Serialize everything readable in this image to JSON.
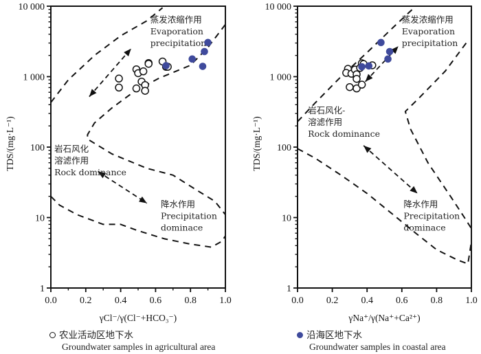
{
  "chart_data": [
    {
      "type": "scatter",
      "title": "",
      "xlabel": "γCl⁻/γ(Cl⁻+HCO₃⁻)",
      "ylabel": "TDS/(mg·L⁻¹)",
      "xlim": [
        0,
        1
      ],
      "ylim": [
        1,
        10000
      ],
      "yscale": "log",
      "x_ticks": [
        "0.0",
        "0.2",
        "0.4",
        "0.6",
        "0.8",
        "1.0"
      ],
      "y_ticks": [
        "1",
        "10",
        "100",
        "1 000",
        "10 000"
      ],
      "annotations": [
        {
          "lines": [
            "蒸发浓缩作用",
            "Evaporation",
            "precipitation"
          ],
          "x": 0.57,
          "y": 5800
        },
        {
          "lines": [
            "岩石风化",
            "溶滤作用",
            "Rock dominance"
          ],
          "x": 0.02,
          "y": 85
        },
        {
          "lines": [
            "降水作用",
            "Precipitation",
            "dominace"
          ],
          "x": 0.63,
          "y": 14
        }
      ],
      "series": [
        {
          "name": "农业活动区地下水 Groundwater samples in agricultural area",
          "marker": "open-circle",
          "points": [
            [
              0.39,
              940
            ],
            [
              0.39,
              700
            ],
            [
              0.49,
              1270
            ],
            [
              0.5,
              1120
            ],
            [
              0.53,
              1190
            ],
            [
              0.52,
              850
            ],
            [
              0.54,
              760
            ],
            [
              0.54,
              630
            ],
            [
              0.49,
              680
            ],
            [
              0.56,
              1560
            ],
            [
              0.56,
              1520
            ],
            [
              0.64,
              1640
            ],
            [
              0.66,
              1380
            ],
            [
              0.67,
              1380
            ]
          ]
        },
        {
          "name": "沿海区地下水 Groundwater samples in coastal area",
          "marker": "filled-circle",
          "color": "#3f4a9c",
          "points": [
            [
              0.66,
              1430
            ],
            [
              0.81,
              1780
            ],
            [
              0.87,
              1400
            ],
            [
              0.88,
              2270
            ],
            [
              0.9,
              3050
            ]
          ]
        }
      ],
      "boundaries": [
        {
          "name": "upper-envelope",
          "points": [
            [
              0.0,
              430
            ],
            [
              0.1,
              900
            ],
            [
              0.25,
              2000
            ],
            [
              0.4,
              3800
            ],
            [
              0.55,
              6200
            ],
            [
              0.64,
              9500
            ]
          ]
        },
        {
          "name": "lower-envelope",
          "points": [
            [
              1.0,
              5500
            ],
            [
              0.9,
              2600
            ],
            [
              0.8,
              1450
            ],
            [
              0.62,
              950
            ],
            [
              0.48,
              620
            ],
            [
              0.35,
              360
            ],
            [
              0.25,
              220
            ],
            [
              0.21,
              150
            ],
            [
              0.21,
              130
            ],
            [
              0.35,
              80
            ],
            [
              0.55,
              50
            ],
            [
              0.7,
              40
            ],
            [
              0.83,
              25
            ],
            [
              0.94,
              17
            ],
            [
              1.0,
              11
            ]
          ]
        },
        {
          "name": "bottom-envelope",
          "points": [
            [
              0.0,
              20
            ],
            [
              0.05,
              15
            ],
            [
              0.15,
              11
            ],
            [
              0.3,
              8
            ],
            [
              0.4,
              8
            ],
            [
              0.5,
              6.5
            ],
            [
              0.65,
              5
            ],
            [
              0.8,
              4.2
            ],
            [
              0.92,
              3.8
            ],
            [
              0.98,
              4.6
            ],
            [
              1.0,
              5.5
            ]
          ]
        }
      ],
      "arrows": [
        {
          "from": [
            0.22,
            520
          ],
          "to": [
            0.46,
            2500
          ],
          "style": "double"
        },
        {
          "from": [
            0.27,
            45
          ],
          "to": [
            0.55,
            16
          ],
          "style": "double"
        }
      ],
      "legend": {
        "marker": "open-circle",
        "label_cn": "农业活动区地下水",
        "label_en": "Groundwater samples in agricultural area",
        "placement": "bottom-left"
      }
    },
    {
      "type": "scatter",
      "title": "",
      "xlabel": "γNa⁺/γ(Na⁺+Ca²⁺)",
      "ylabel": "TDS/(mg·L⁻¹)",
      "xlim": [
        0,
        1
      ],
      "ylim": [
        1,
        10000
      ],
      "yscale": "log",
      "x_ticks": [
        "0.0",
        "0.2",
        "0.4",
        "0.6",
        "0.8",
        "1.0"
      ],
      "y_ticks": [
        "1",
        "10",
        "100",
        "1 000",
        "10 000"
      ],
      "annotations": [
        {
          "lines": [
            "蒸发浓缩作用",
            "Evaporation",
            "precipitation"
          ],
          "x": 0.6,
          "y": 5800
        },
        {
          "lines": [
            "岩石风化-",
            "溶滤作用",
            "Rock dominance"
          ],
          "x": 0.06,
          "y": 300
        },
        {
          "lines": [
            "降水作用",
            "Precipitation",
            "dominace"
          ],
          "x": 0.61,
          "y": 14
        }
      ],
      "series": [
        {
          "name": "农业活动区地下水 Groundwater samples in agricultural area",
          "marker": "open-circle",
          "points": [
            [
              0.29,
              1290
            ],
            [
              0.28,
              1130
            ],
            [
              0.31,
              1100
            ],
            [
              0.33,
              1260
            ],
            [
              0.34,
              1080
            ],
            [
              0.34,
              930
            ],
            [
              0.3,
              710
            ],
            [
              0.34,
              680
            ],
            [
              0.37,
              770
            ],
            [
              0.37,
              1550
            ],
            [
              0.38,
              1510
            ],
            [
              0.43,
              1450
            ],
            [
              0.36,
              1330
            ]
          ]
        },
        {
          "name": "沿海区地下水 Groundwater samples in coastal area",
          "marker": "filled-circle",
          "color": "#3f4a9c",
          "points": [
            [
              0.37,
              1380
            ],
            [
              0.41,
              1420
            ],
            [
              0.52,
              1780
            ],
            [
              0.53,
              2270
            ],
            [
              0.48,
              3050
            ]
          ]
        }
      ],
      "boundaries": [
        {
          "name": "upper-envelope",
          "points": [
            [
              0.0,
              230
            ],
            [
              0.1,
              420
            ],
            [
              0.25,
              1000
            ],
            [
              0.4,
              2200
            ],
            [
              0.55,
              5000
            ],
            [
              0.66,
              9000
            ]
          ]
        },
        {
          "name": "middle-envelope",
          "points": [
            [
              0.97,
              3000
            ],
            [
              0.85,
              1200
            ],
            [
              0.7,
              500
            ],
            [
              0.62,
              320
            ],
            [
              0.65,
              180
            ],
            [
              0.75,
              60
            ],
            [
              0.88,
              20
            ],
            [
              0.96,
              10
            ],
            [
              1.0,
              7
            ]
          ]
        },
        {
          "name": "lower-envelope",
          "points": [
            [
              0.0,
              95
            ],
            [
              0.1,
              70
            ],
            [
              0.25,
              40
            ],
            [
              0.4,
              22
            ],
            [
              0.55,
              11
            ],
            [
              0.68,
              6
            ],
            [
              0.8,
              3.5
            ],
            [
              0.92,
              2.5
            ],
            [
              0.98,
              2.2
            ],
            [
              1.0,
              4.5
            ]
          ]
        }
      ],
      "arrows": [
        {
          "from": [
            0.39,
            850
          ],
          "to": [
            0.58,
            2700
          ],
          "style": "double"
        },
        {
          "from": [
            0.38,
            105
          ],
          "to": [
            0.69,
            22
          ],
          "style": "double"
        }
      ],
      "legend": {
        "marker": "filled-circle",
        "label_cn": "沿海区地下水",
        "label_en": "Groundwater samples in coastal area",
        "placement": "bottom-right"
      }
    }
  ]
}
